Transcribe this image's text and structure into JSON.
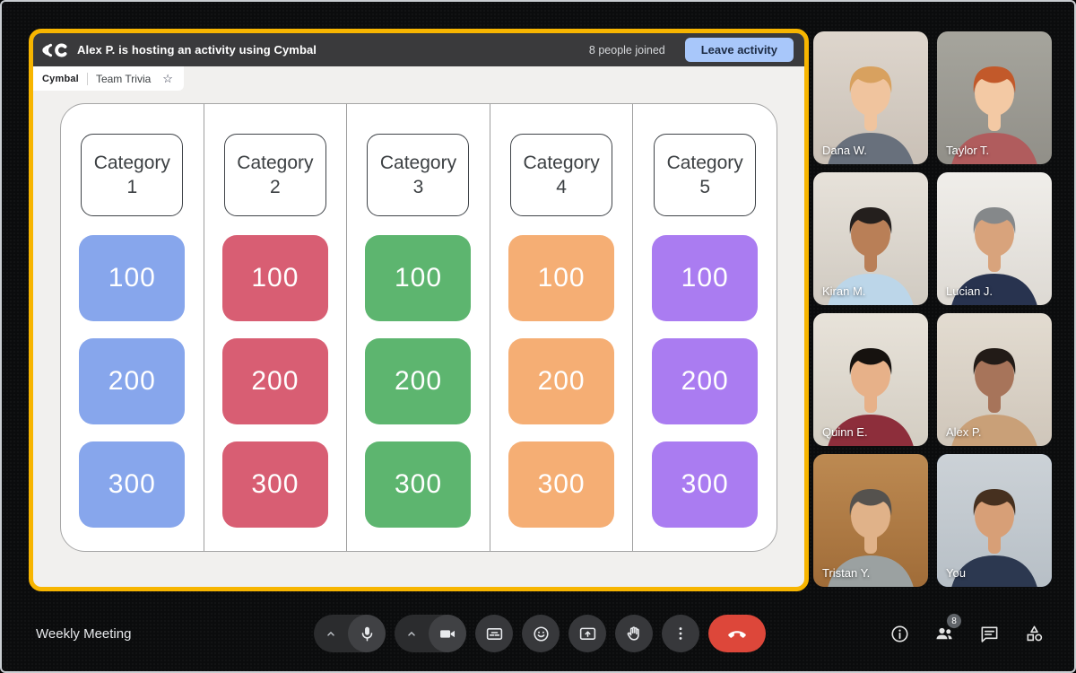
{
  "activity": {
    "frame_color": "#f7b500",
    "header": {
      "title": "Alex P. is hosting an activity using Cymbal",
      "people_joined": "8 people joined",
      "leave_button": "Leave activity"
    },
    "tab": {
      "app_name": "Cymbal",
      "title": "Team Trivia",
      "star_icon": "☆"
    },
    "board": {
      "columns": [
        {
          "category_line1": "Category",
          "category_line2": "1",
          "color": "#87a6ec",
          "values": [
            "100",
            "200",
            "300"
          ]
        },
        {
          "category_line1": "Category",
          "category_line2": "2",
          "color": "#d85e73",
          "values": [
            "100",
            "200",
            "300"
          ]
        },
        {
          "category_line1": "Category",
          "category_line2": "3",
          "color": "#5db56f",
          "values": [
            "100",
            "200",
            "300"
          ]
        },
        {
          "category_line1": "Category",
          "category_line2": "4",
          "color": "#f5ae74",
          "values": [
            "100",
            "200",
            "300"
          ]
        },
        {
          "category_line1": "Category",
          "category_line2": "5",
          "color": "#aa7cf1",
          "values": [
            "100",
            "200",
            "300"
          ]
        }
      ]
    }
  },
  "participants": [
    {
      "name": "Dana W.",
      "selected": false,
      "colors": {
        "bg": "#ded6cd",
        "bg2": "#c9c0b6",
        "skin": "#f0c49e",
        "hair": "#d8a15f",
        "shirt": "#68707c"
      }
    },
    {
      "name": "Taylor T.",
      "selected": false,
      "colors": {
        "bg": "#a6a59d",
        "bg2": "#918f88",
        "skin": "#f3c9a4",
        "hair": "#c2592a",
        "shirt": "#b05c5d"
      }
    },
    {
      "name": "Kiran M.",
      "selected": false,
      "colors": {
        "bg": "#e7e2da",
        "bg2": "#d0cac1",
        "skin": "#b97f57",
        "hair": "#241f1d",
        "shirt": "#bcd6e9"
      }
    },
    {
      "name": "Lucian J.",
      "selected": false,
      "colors": {
        "bg": "#f0eeea",
        "bg2": "#ddd9d3",
        "skin": "#d8a37c",
        "hair": "#85888a",
        "shirt": "#28334f"
      }
    },
    {
      "name": "Quinn E.",
      "selected": false,
      "colors": {
        "bg": "#e8e3da",
        "bg2": "#d3cdc2",
        "skin": "#e7b189",
        "hair": "#16120f",
        "shirt": "#8d2e3b"
      }
    },
    {
      "name": "Alex P.",
      "selected": false,
      "colors": {
        "bg": "#e3dcd1",
        "bg2": "#cfc6ba",
        "skin": "#a7745a",
        "hair": "#221b17",
        "shirt": "#c9a078"
      }
    },
    {
      "name": "Tristan Y.",
      "selected": false,
      "colors": {
        "bg": "#bd8a52",
        "bg2": "#a06c38",
        "skin": "#e0b289",
        "hair": "#55524e",
        "shirt": "#9ba1a1"
      }
    },
    {
      "name": "You",
      "selected": true,
      "colors": {
        "bg": "#ccd2d7",
        "bg2": "#b7bfc6",
        "skin": "#d79f77",
        "hair": "#46301f",
        "shirt": "#2c3850"
      }
    }
  ],
  "meeting": {
    "title": "Weekly Meeting",
    "controls": [
      {
        "name": "mic",
        "icon": "mic",
        "split": true
      },
      {
        "name": "camera",
        "icon": "videocam",
        "split": true
      },
      {
        "name": "captions",
        "icon": "captions"
      },
      {
        "name": "reactions",
        "icon": "emoji"
      },
      {
        "name": "present",
        "icon": "present"
      },
      {
        "name": "raise-hand",
        "icon": "hand"
      },
      {
        "name": "more-options",
        "icon": "more-vert"
      },
      {
        "name": "end-call",
        "icon": "call-end",
        "danger": true
      }
    ],
    "right_controls": [
      {
        "name": "info",
        "icon": "info"
      },
      {
        "name": "people",
        "icon": "people",
        "badge": "8"
      },
      {
        "name": "chat",
        "icon": "chat"
      },
      {
        "name": "activities",
        "icon": "activities"
      }
    ]
  },
  "colors": {
    "accent_blue": "#a8c7fa",
    "end_call_red": "#dd473a",
    "frame_yellow": "#f7b500"
  }
}
